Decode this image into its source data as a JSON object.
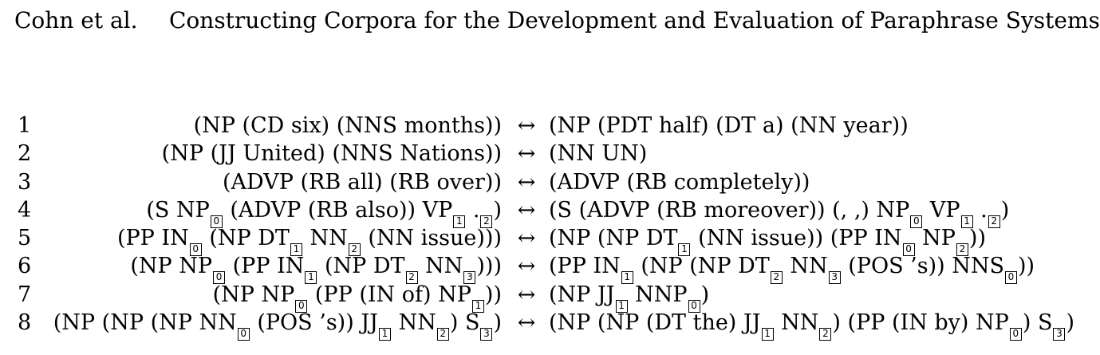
{
  "header": {
    "author": "Cohn et al.",
    "title": "Constructing Corpora for the Development and Evaluation of Paraphrase Systems"
  },
  "arrow": "↔",
  "rules": [
    {
      "num": "1",
      "lhs": [
        {
          "t": "(NP (CD six) (NNS months))"
        }
      ],
      "rhs": [
        {
          "t": "(NP (PDT half) (DT a) (NN year))"
        }
      ]
    },
    {
      "num": "2",
      "lhs": [
        {
          "t": "(NP (JJ United) (NNS Nations))"
        }
      ],
      "rhs": [
        {
          "t": "(NN UN)"
        }
      ]
    },
    {
      "num": "3",
      "lhs": [
        {
          "t": "(ADVP (RB all) (RB over))"
        }
      ],
      "rhs": [
        {
          "t": "(ADVP (RB completely))"
        }
      ]
    },
    {
      "num": "4",
      "lhs": [
        {
          "t": "(S NP"
        },
        {
          "i": "0"
        },
        {
          "t": " (ADVP (RB also)) VP"
        },
        {
          "i": "1"
        },
        {
          "t": " ."
        },
        {
          "i": "2"
        },
        {
          "t": ")"
        }
      ],
      "rhs": [
        {
          "t": "(S (ADVP (RB moreover)) (, ,) NP"
        },
        {
          "i": "0"
        },
        {
          "t": " VP"
        },
        {
          "i": "1"
        },
        {
          "t": " ."
        },
        {
          "i": "2"
        },
        {
          "t": ")"
        }
      ]
    },
    {
      "num": "5",
      "lhs": [
        {
          "t": "(PP IN"
        },
        {
          "i": "0"
        },
        {
          "t": " (NP DT"
        },
        {
          "i": "1"
        },
        {
          "t": " NN"
        },
        {
          "i": "2"
        },
        {
          "t": " (NN issue)))"
        }
      ],
      "rhs": [
        {
          "t": "(NP (NP DT"
        },
        {
          "i": "1"
        },
        {
          "t": " (NN issue)) (PP IN"
        },
        {
          "i": "0"
        },
        {
          "t": " NP"
        },
        {
          "i": "2"
        },
        {
          "t": "))"
        }
      ]
    },
    {
      "num": "6",
      "lhs": [
        {
          "t": "(NP NP"
        },
        {
          "i": "0"
        },
        {
          "t": " (PP IN"
        },
        {
          "i": "1"
        },
        {
          "t": " (NP DT"
        },
        {
          "i": "2"
        },
        {
          "t": " NN"
        },
        {
          "i": "3"
        },
        {
          "t": ")))"
        }
      ],
      "rhs": [
        {
          "t": "(PP IN"
        },
        {
          "i": "1"
        },
        {
          "t": " (NP (NP DT"
        },
        {
          "i": "2"
        },
        {
          "t": " NN"
        },
        {
          "i": "3"
        },
        {
          "t": " (POS ’s)) NNS"
        },
        {
          "i": "0"
        },
        {
          "t": "))"
        }
      ]
    },
    {
      "num": "7",
      "lhs": [
        {
          "t": "(NP NP"
        },
        {
          "i": "0"
        },
        {
          "t": " (PP (IN of) NP"
        },
        {
          "i": "1"
        },
        {
          "t": "))"
        }
      ],
      "rhs": [
        {
          "t": "(NP JJ"
        },
        {
          "i": "1"
        },
        {
          "t": " NNP"
        },
        {
          "i": "0"
        },
        {
          "t": ")"
        }
      ]
    },
    {
      "num": "8",
      "lhs": [
        {
          "t": "(NP (NP (NP NN"
        },
        {
          "i": "0"
        },
        {
          "t": " (POS ’s)) JJ"
        },
        {
          "i": "1"
        },
        {
          "t": " NN"
        },
        {
          "i": "2"
        },
        {
          "t": ") S"
        },
        {
          "i": "3"
        },
        {
          "t": ")"
        }
      ],
      "rhs": [
        {
          "t": "(NP (NP (DT the) JJ"
        },
        {
          "i": "1"
        },
        {
          "t": " NN"
        },
        {
          "i": "2"
        },
        {
          "t": ") (PP (IN by) NP"
        },
        {
          "i": "0"
        },
        {
          "t": ") S"
        },
        {
          "i": "3"
        },
        {
          "t": ")"
        }
      ]
    }
  ]
}
